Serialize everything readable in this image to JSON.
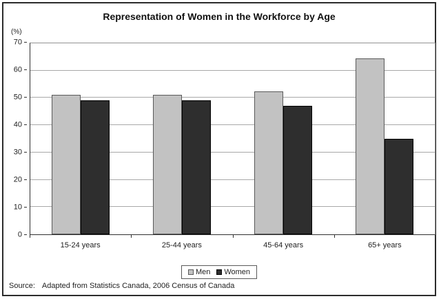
{
  "chart_data": {
    "type": "bar",
    "title": "Representation of Women in the Workforce by Age",
    "y_axis_unit_label": "(%)",
    "categories": [
      "15-24 years",
      "25-44 years",
      "45-64 years",
      "65+ years"
    ],
    "series": [
      {
        "name": "Men",
        "color": "#c2c2c2",
        "border_color": "#595959",
        "values": [
          51,
          51,
          52.5,
          64.5
        ]
      },
      {
        "name": "Women",
        "color": "#2e2e2e",
        "border_color": "#000000",
        "values": [
          49,
          49,
          47,
          35
        ]
      }
    ],
    "ylim": [
      0,
      70
    ],
    "y_ticks": [
      0,
      10,
      20,
      30,
      40,
      50,
      60,
      70
    ],
    "grid": true,
    "legend_position": "bottom"
  },
  "footer": {
    "label": "Source:",
    "text": "Adapted from Statistics Canada, 2006 Census of Canada"
  }
}
